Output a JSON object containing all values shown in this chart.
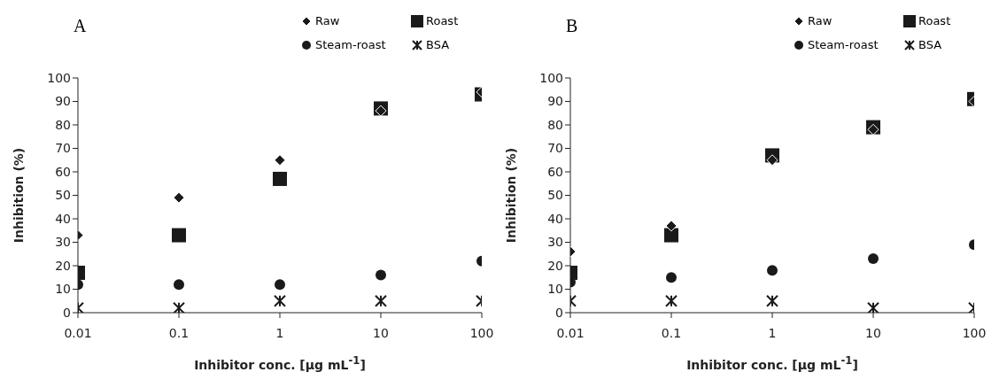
{
  "chart_data": [
    {
      "type": "scatter",
      "title": "A",
      "xlabel": "Inhibitor conc. [μg mL$^{-1}$]",
      "ylabel": "Inhibition (%)",
      "log": "x",
      "x": [
        0.01,
        0.1,
        1,
        10,
        100
      ],
      "xlim": [
        0.01,
        100
      ],
      "xticks": [
        0.01,
        0.1,
        1,
        10,
        100
      ],
      "ylim": [
        0,
        100
      ],
      "yticks": [
        0,
        10,
        20,
        30,
        40,
        50,
        60,
        70,
        80,
        90,
        100
      ],
      "grid": false,
      "legend": "top right",
      "series": [
        {
          "name": "Raw",
          "color": "#1a1a1a",
          "marker": "diamond",
          "values": [
            33,
            49,
            65,
            86,
            94
          ]
        },
        {
          "name": "Roast",
          "color": "#1a1a1a",
          "marker": "square",
          "values": [
            17,
            33,
            57,
            87,
            93
          ]
        },
        {
          "name": "Steam-roast",
          "color": "#1a1a1a",
          "marker": "circle",
          "values": [
            12,
            12,
            12,
            16,
            22
          ]
        },
        {
          "name": "BSA",
          "color": "#1a1a1a",
          "marker": "cross",
          "values": [
            2,
            2,
            5,
            5,
            5
          ]
        }
      ]
    },
    {
      "type": "scatter",
      "title": "B",
      "xlabel": "Inhibitor conc. [μg mL$^{-1}$]",
      "ylabel": "Inhibition (%)",
      "log": "x",
      "x": [
        0.01,
        0.1,
        1,
        10,
        100
      ],
      "xlim": [
        0.01,
        100
      ],
      "xticks": [
        0.01,
        0.1,
        1,
        10,
        100
      ],
      "ylim": [
        0,
        100
      ],
      "yticks": [
        0,
        10,
        20,
        30,
        40,
        50,
        60,
        70,
        80,
        90,
        100
      ],
      "grid": false,
      "legend": "top right",
      "series": [
        {
          "name": "Raw",
          "color": "#1a1a1a",
          "marker": "diamond",
          "values": [
            26,
            37,
            65,
            78,
            90
          ]
        },
        {
          "name": "Roast",
          "color": "#1a1a1a",
          "marker": "square",
          "values": [
            17,
            33,
            67,
            79,
            91
          ]
        },
        {
          "name": "Steam-roast",
          "color": "#1a1a1a",
          "marker": "circle",
          "values": [
            13,
            15,
            18,
            23,
            29
          ]
        },
        {
          "name": "BSA",
          "color": "#1a1a1a",
          "marker": "cross",
          "values": [
            5,
            5,
            5,
            2,
            2
          ]
        }
      ]
    }
  ]
}
